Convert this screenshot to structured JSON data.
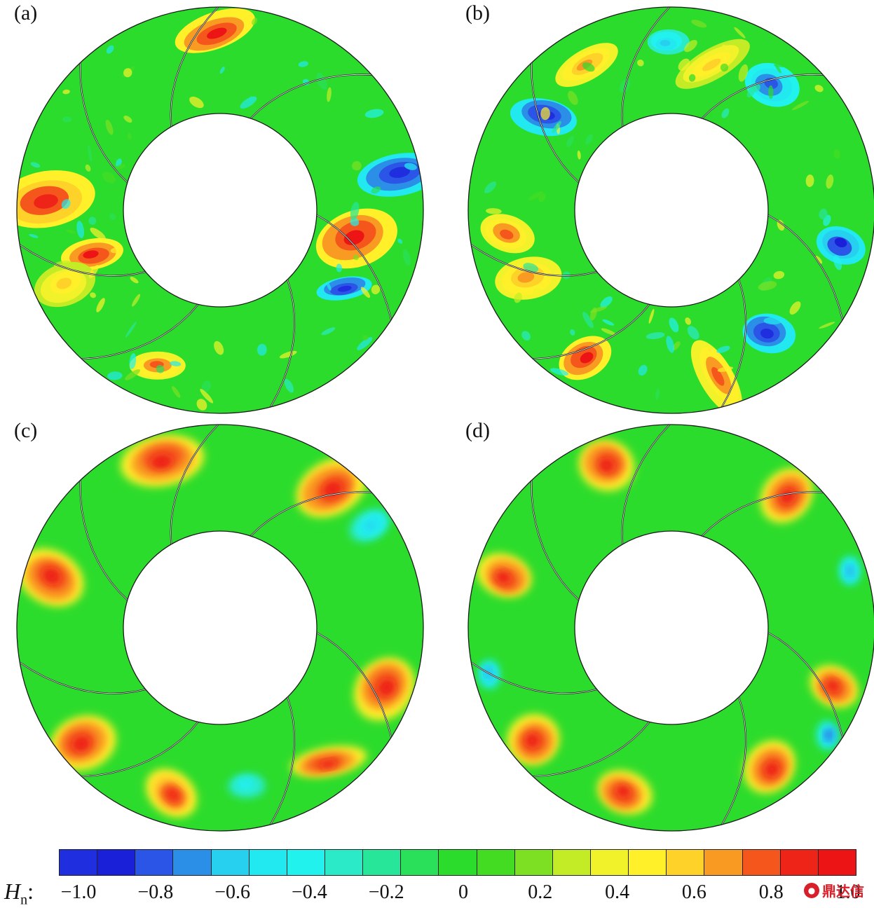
{
  "panels": [
    {
      "id": "a",
      "label": "(a)"
    },
    {
      "id": "b",
      "label": "(b)"
    },
    {
      "id": "c",
      "label": "(c)"
    },
    {
      "id": "d",
      "label": "(d)"
    }
  ],
  "colorbar": {
    "title_var": "H",
    "title_sub": "n",
    "title_suffix": ":",
    "colors": [
      "#1f2fe0",
      "#1a1fd8",
      "#2a55e6",
      "#2b8fe8",
      "#27d0ee",
      "#22e8f0",
      "#22f2ee",
      "#2aeac8",
      "#27e69a",
      "#2ae05a",
      "#2cdc2c",
      "#44dc22",
      "#7ee022",
      "#c4ec26",
      "#f2f22a",
      "#fff02a",
      "#ffd22a",
      "#f99a22",
      "#f5561c",
      "#ef2418",
      "#ec1414"
    ],
    "tick_labels": [
      "−1.0",
      "−0.8",
      "−0.6",
      "−0.4",
      "−0.2",
      "0",
      "0.2",
      "0.4",
      "0.6",
      "0.8",
      "1.0"
    ]
  },
  "watermark": {
    "text": "鼎达信"
  }
}
